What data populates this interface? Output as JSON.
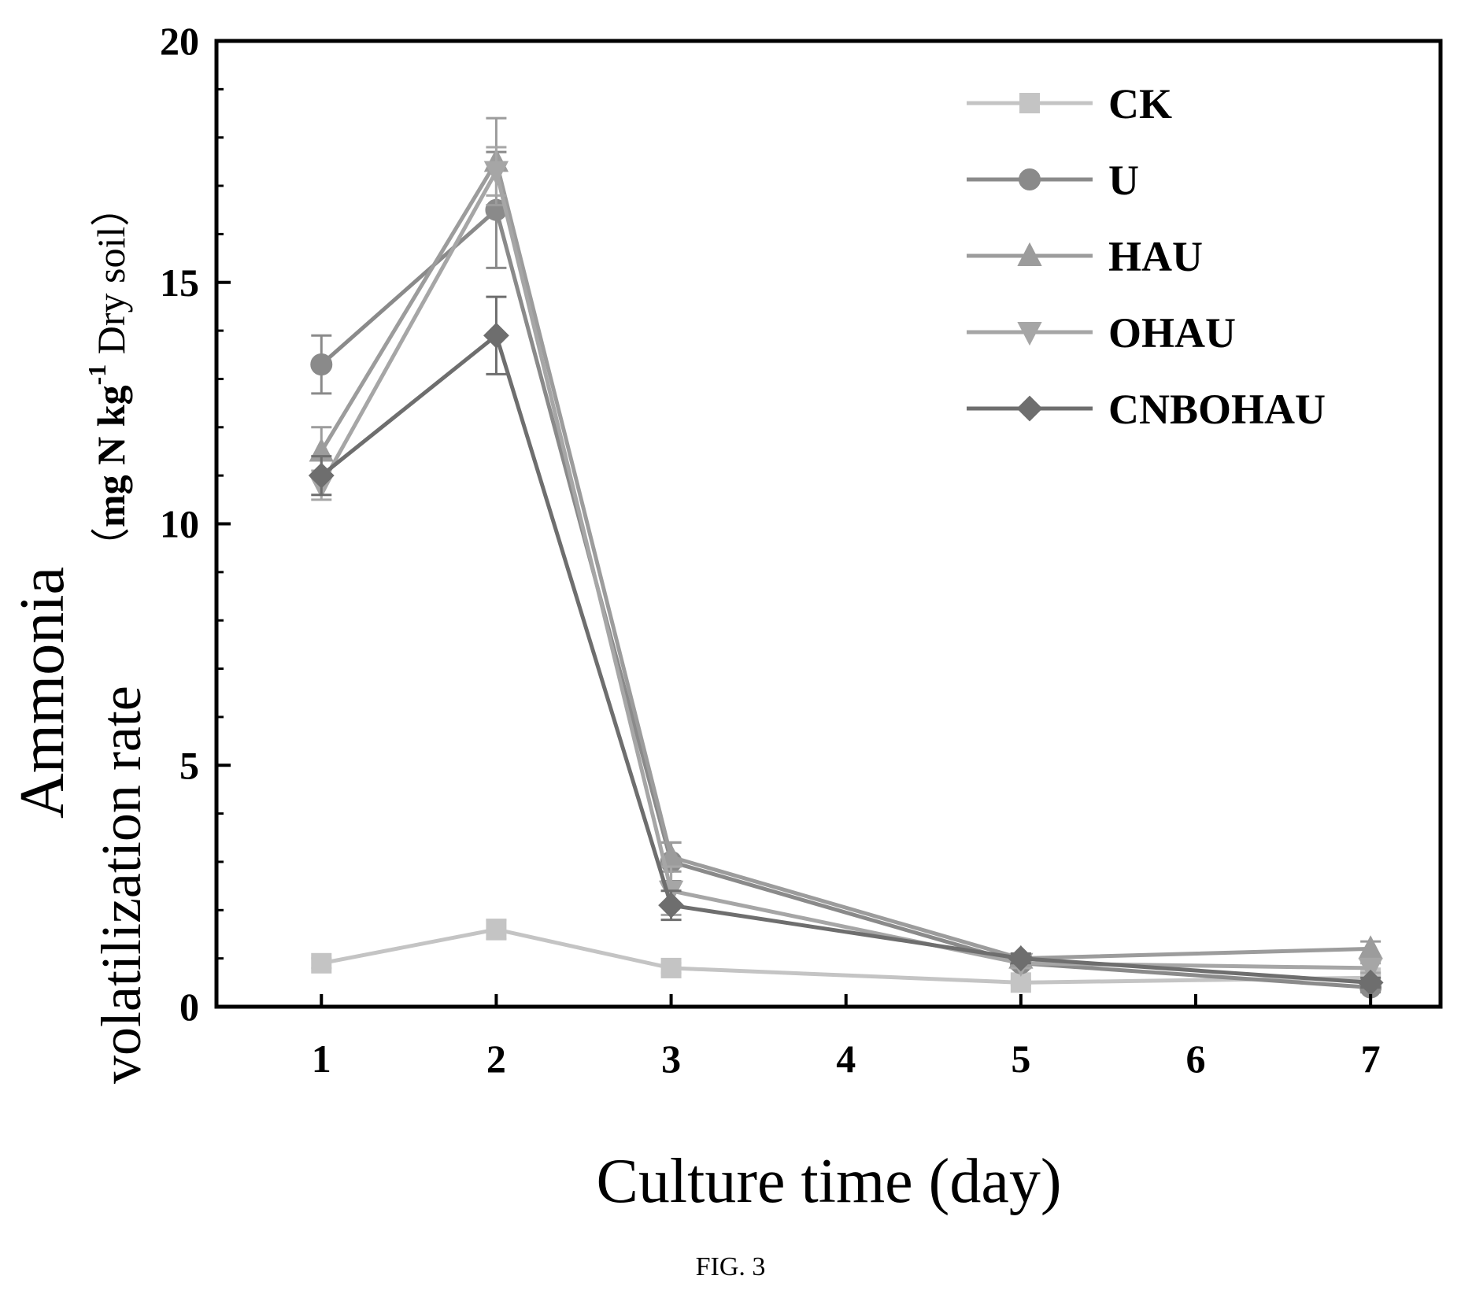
{
  "chart_data": {
    "type": "line",
    "xlabel": "Culture time (day)",
    "ylabel_line1": "Ammonia",
    "ylabel_line2": "volatilization rate",
    "ylabel_unit_open": "（",
    "ylabel_unit_main": "mg N kg",
    "ylabel_unit_sup": "-1",
    "ylabel_unit_tail": " Dry soil",
    "ylabel_unit_close": "）",
    "x_ticks": [
      "1",
      "2",
      "3",
      "4",
      "5",
      "6",
      "7"
    ],
    "xlim": [
      0.4,
      7.4
    ],
    "y_ticks": [
      "0",
      "5",
      "10",
      "15",
      "20"
    ],
    "ylim": [
      0,
      20
    ],
    "legend_position": "top-right",
    "series": [
      {
        "name": "CK",
        "marker": "square",
        "color": "#c4c4c4",
        "x": [
          1,
          2,
          3,
          5,
          7
        ],
        "y": [
          0.9,
          1.6,
          0.8,
          0.5,
          0.6
        ],
        "err": [
          0.1,
          0.2,
          0.1,
          0.05,
          0.05
        ]
      },
      {
        "name": "U",
        "marker": "circle",
        "color": "#8a8a8a",
        "x": [
          1,
          2,
          3,
          5,
          7
        ],
        "y": [
          13.3,
          16.5,
          3.0,
          0.9,
          0.4
        ],
        "err": [
          0.6,
          1.2,
          0.4,
          0.1,
          0.1
        ]
      },
      {
        "name": "HAU",
        "marker": "triangle-up",
        "color": "#9c9c9c",
        "x": [
          1,
          2,
          3,
          5,
          7
        ],
        "y": [
          11.5,
          17.5,
          3.1,
          1.0,
          1.2
        ],
        "err": [
          0.5,
          0.9,
          0.3,
          0.1,
          0.15
        ]
      },
      {
        "name": "OHAU",
        "marker": "triangle-down",
        "color": "#a6a6a6",
        "x": [
          1,
          2,
          3,
          5,
          7
        ],
        "y": [
          10.8,
          17.3,
          2.4,
          0.9,
          0.8
        ],
        "err": [
          0.3,
          0.5,
          0.5,
          0.1,
          0.1
        ]
      },
      {
        "name": "CNBOHAU",
        "marker": "diamond",
        "color": "#6e6e6e",
        "x": [
          1,
          2,
          3,
          5,
          7
        ],
        "y": [
          11.0,
          13.9,
          2.1,
          1.0,
          0.5
        ],
        "err": [
          0.4,
          0.8,
          0.3,
          0.1,
          0.1
        ]
      }
    ]
  },
  "figure": {
    "caption": "FIG. 3"
  }
}
